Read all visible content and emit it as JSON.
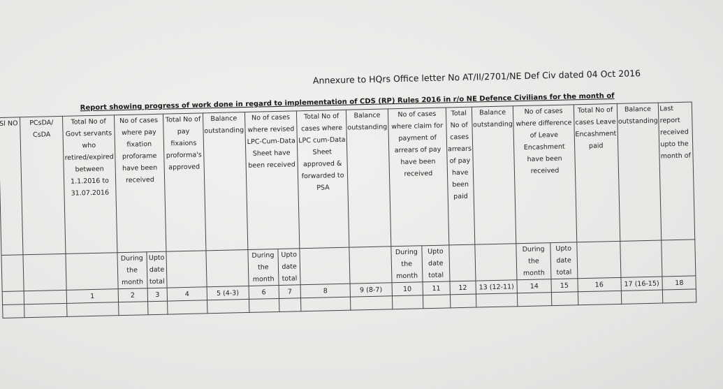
{
  "annexure": "Annexure to HQrs Office letter No AT/II/2701/NE Def Civ dated 04 Oct 2016",
  "title": "Report showing progress of work done in regard to implementation of CDS (RP) Rules 2016 in r/o NE Defence Civilians for the month of",
  "headers": [
    "Sl NO",
    "PCsDA/ CsDA",
    "Total No of Govt servants who retired/expired between 1.1.2016 to 31.07.2016",
    "No of cases where pay fixation proforame have been received",
    "Total No of pay fixaions proforma's approved",
    "Balance outstanding",
    "No of cases where revised LPC-Cum-Data Sheet have been received",
    "Total No of cases where LPC cum-Data Sheet approved & forwarded to PSA",
    "Balance outstanding",
    "No of cases where claim for payment of arrears of pay have been received",
    "Total No of cases arrears of pay have been paid",
    "Balance outstanding",
    "No of cases where difference of Leave Encashment have been received",
    "Total No of cases Leave Encashment paid",
    "Balance outstanding",
    "Last report received upto the month of"
  ],
  "sub": {
    "during": "During the month",
    "upto": "Upto date total"
  },
  "numbers": [
    "1",
    "2",
    "3",
    "4",
    "5 (4-3)",
    "6",
    "7",
    "8",
    "9 (8-7)",
    "10",
    "11",
    "12",
    "13 (12-11)",
    "14",
    "15",
    "16",
    "17 (16-15)",
    "18"
  ]
}
